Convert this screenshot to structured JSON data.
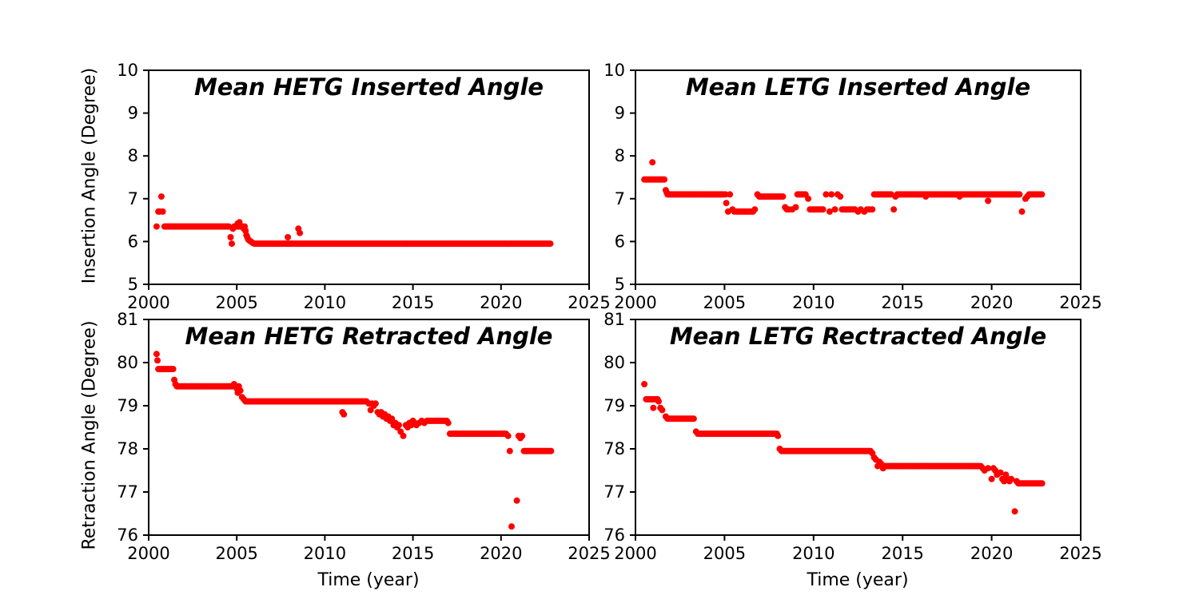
{
  "figure": {
    "background": "#ffffff",
    "marker_color": "#ff0000"
  },
  "chart_data": [
    {
      "type": "scatter",
      "title": "Mean HETG Inserted Angle",
      "xlabel": "",
      "ylabel": "Insertion Angle (Degree)",
      "xlim": [
        2000,
        2025
      ],
      "ylim": [
        5,
        10
      ],
      "xticks": [
        2000,
        2005,
        2010,
        2015,
        2020,
        2025
      ],
      "yticks": [
        5,
        6,
        7,
        8,
        9,
        10
      ],
      "grid": false,
      "legend": "none",
      "marker": {
        "color": "#ff0000",
        "size": 4
      },
      "runs": [
        {
          "from": 2000.9,
          "to": 2004.6,
          "step": 0.07,
          "y": 6.35
        },
        {
          "from": 2004.95,
          "to": 2005.35,
          "step": 0.08,
          "y": 6.35
        },
        {
          "from": 2006.0,
          "to": 2022.8,
          "step": 0.07,
          "y": 5.95
        }
      ],
      "points": [
        [
          2000.45,
          6.35
        ],
        [
          2000.55,
          6.7
        ],
        [
          2000.62,
          6.7
        ],
        [
          2000.72,
          7.05
        ],
        [
          2000.8,
          6.7
        ],
        [
          2004.65,
          6.1
        ],
        [
          2004.72,
          5.95
        ],
        [
          2004.78,
          6.3
        ],
        [
          2004.85,
          6.35
        ],
        [
          2005.05,
          6.42
        ],
        [
          2005.15,
          6.45
        ],
        [
          2005.4,
          6.3
        ],
        [
          2005.45,
          6.35
        ],
        [
          2005.5,
          6.25
        ],
        [
          2005.55,
          6.15
        ],
        [
          2005.6,
          6.1
        ],
        [
          2005.65,
          6.05
        ],
        [
          2005.72,
          6.02
        ],
        [
          2005.8,
          6.0
        ],
        [
          2005.9,
          5.97
        ],
        [
          2007.9,
          6.1
        ],
        [
          2008.5,
          6.3
        ],
        [
          2008.58,
          6.2
        ]
      ]
    },
    {
      "type": "scatter",
      "title": "Mean LETG Inserted Angle",
      "xlabel": "",
      "ylabel": "",
      "xlim": [
        2000,
        2025
      ],
      "ylim": [
        5,
        10
      ],
      "xticks": [
        2000,
        2005,
        2010,
        2015,
        2020,
        2025
      ],
      "yticks": [
        5,
        6,
        7,
        8,
        9,
        10
      ],
      "grid": false,
      "legend": "none",
      "marker": {
        "color": "#ff0000",
        "size": 4
      },
      "runs": [
        {
          "from": 2000.5,
          "to": 2001.65,
          "step": 0.07,
          "y": 7.45
        },
        {
          "from": 2001.8,
          "to": 2004.95,
          "step": 0.07,
          "y": 7.1
        },
        {
          "from": 2005.7,
          "to": 2006.6,
          "step": 0.09,
          "y": 6.7
        },
        {
          "from": 2007.0,
          "to": 2008.3,
          "step": 0.08,
          "y": 7.05
        },
        {
          "from": 2009.1,
          "to": 2009.6,
          "step": 0.09,
          "y": 7.1
        },
        {
          "from": 2009.9,
          "to": 2010.6,
          "step": 0.09,
          "y": 6.75
        },
        {
          "from": 2011.6,
          "to": 2012.4,
          "step": 0.09,
          "y": 6.75
        },
        {
          "from": 2013.4,
          "to": 2014.4,
          "step": 0.08,
          "y": 7.1
        },
        {
          "from": 2014.7,
          "to": 2021.6,
          "step": 0.07,
          "y": 7.1
        },
        {
          "from": 2022.1,
          "to": 2022.85,
          "step": 0.09,
          "y": 7.1
        }
      ],
      "points": [
        [
          2000.95,
          7.85
        ],
        [
          2001.7,
          7.2
        ],
        [
          2001.75,
          7.15
        ],
        [
          2005.05,
          7.1
        ],
        [
          2005.1,
          6.9
        ],
        [
          2005.2,
          6.7
        ],
        [
          2005.3,
          7.1
        ],
        [
          2005.45,
          6.75
        ],
        [
          2005.55,
          6.7
        ],
        [
          2006.7,
          6.75
        ],
        [
          2006.85,
          7.1
        ],
        [
          2006.95,
          7.05
        ],
        [
          2008.4,
          6.8
        ],
        [
          2008.5,
          6.75
        ],
        [
          2008.62,
          6.75
        ],
        [
          2008.8,
          6.75
        ],
        [
          2009.0,
          6.8
        ],
        [
          2009.7,
          7.0
        ],
        [
          2009.8,
          6.75
        ],
        [
          2010.7,
          7.1
        ],
        [
          2010.9,
          6.7
        ],
        [
          2011.0,
          7.1
        ],
        [
          2011.2,
          6.75
        ],
        [
          2011.35,
          7.1
        ],
        [
          2011.5,
          7.05
        ],
        [
          2012.5,
          6.7
        ],
        [
          2012.65,
          6.75
        ],
        [
          2012.85,
          6.7
        ],
        [
          2013.0,
          6.75
        ],
        [
          2013.15,
          6.75
        ],
        [
          2013.3,
          6.75
        ],
        [
          2014.5,
          6.75
        ],
        [
          2014.6,
          7.05
        ],
        [
          2016.3,
          7.05
        ],
        [
          2018.2,
          7.05
        ],
        [
          2019.8,
          6.95
        ],
        [
          2021.7,
          6.7
        ],
        [
          2021.9,
          7.0
        ],
        [
          2022.0,
          7.05
        ]
      ]
    },
    {
      "type": "scatter",
      "title": "Mean HETG Retracted Angle",
      "xlabel": "Time (year)",
      "ylabel": "Retraction Angle (Degree)",
      "xlim": [
        2000,
        2025
      ],
      "ylim": [
        76,
        81
      ],
      "xticks": [
        2000,
        2005,
        2010,
        2015,
        2020,
        2025
      ],
      "yticks": [
        76,
        77,
        78,
        79,
        80,
        81
      ],
      "grid": false,
      "legend": "none",
      "marker": {
        "color": "#ff0000",
        "size": 4
      },
      "runs": [
        {
          "from": 2000.55,
          "to": 2001.4,
          "step": 0.07,
          "y": 79.85
        },
        {
          "from": 2001.6,
          "to": 2004.75,
          "step": 0.07,
          "y": 79.45
        },
        {
          "from": 2005.5,
          "to": 2012.4,
          "step": 0.07,
          "y": 79.1
        },
        {
          "from": 2015.8,
          "to": 2016.95,
          "step": 0.08,
          "y": 78.65
        },
        {
          "from": 2017.2,
          "to": 2020.3,
          "step": 0.07,
          "y": 78.35
        },
        {
          "from": 2021.3,
          "to": 2022.85,
          "step": 0.07,
          "y": 77.95
        }
      ],
      "points": [
        [
          2000.45,
          80.2
        ],
        [
          2000.5,
          80.05
        ],
        [
          2001.45,
          79.6
        ],
        [
          2001.52,
          79.5
        ],
        [
          2004.85,
          79.5
        ],
        [
          2004.92,
          79.45
        ],
        [
          2005.0,
          79.4
        ],
        [
          2005.06,
          79.3
        ],
        [
          2005.12,
          79.45
        ],
        [
          2005.2,
          79.35
        ],
        [
          2005.3,
          79.2
        ],
        [
          2005.4,
          79.15
        ],
        [
          2011.0,
          78.85
        ],
        [
          2011.08,
          78.8
        ],
        [
          2012.5,
          79.05
        ],
        [
          2012.6,
          78.9
        ],
        [
          2012.68,
          79.05
        ],
        [
          2012.78,
          79.0
        ],
        [
          2012.88,
          79.05
        ],
        [
          2013.0,
          78.85
        ],
        [
          2013.1,
          78.8
        ],
        [
          2013.2,
          78.85
        ],
        [
          2013.3,
          78.75
        ],
        [
          2013.4,
          78.8
        ],
        [
          2013.5,
          78.7
        ],
        [
          2013.6,
          78.75
        ],
        [
          2013.7,
          78.65
        ],
        [
          2013.8,
          78.7
        ],
        [
          2013.9,
          78.55
        ],
        [
          2014.0,
          78.6
        ],
        [
          2014.1,
          78.5
        ],
        [
          2014.2,
          78.55
        ],
        [
          2014.3,
          78.4
        ],
        [
          2014.45,
          78.3
        ],
        [
          2014.6,
          78.55
        ],
        [
          2014.7,
          78.5
        ],
        [
          2014.8,
          78.6
        ],
        [
          2014.9,
          78.55
        ],
        [
          2015.0,
          78.65
        ],
        [
          2015.1,
          78.6
        ],
        [
          2015.2,
          78.55
        ],
        [
          2015.35,
          78.6
        ],
        [
          2015.5,
          78.65
        ],
        [
          2015.65,
          78.6
        ],
        [
          2017.0,
          78.6
        ],
        [
          2017.1,
          78.35
        ],
        [
          2020.4,
          78.3
        ],
        [
          2020.5,
          77.95
        ],
        [
          2020.6,
          76.2
        ],
        [
          2020.9,
          76.8
        ],
        [
          2021.0,
          78.3
        ],
        [
          2021.1,
          78.25
        ],
        [
          2021.2,
          78.3
        ]
      ]
    },
    {
      "type": "scatter",
      "title": "Mean LETG Rectracted Angle",
      "xlabel": "Time (year)",
      "ylabel": "",
      "xlim": [
        2000,
        2025
      ],
      "ylim": [
        76,
        81
      ],
      "xticks": [
        2000,
        2005,
        2010,
        2015,
        2020,
        2025
      ],
      "yticks": [
        76,
        77,
        78,
        79,
        80,
        81
      ],
      "grid": false,
      "legend": "none",
      "marker": {
        "color": "#ff0000",
        "size": 4
      },
      "runs": [
        {
          "from": 2000.6,
          "to": 2001.25,
          "step": 0.08,
          "y": 79.15
        },
        {
          "from": 2001.8,
          "to": 2003.3,
          "step": 0.07,
          "y": 78.7
        },
        {
          "from": 2003.6,
          "to": 2007.95,
          "step": 0.07,
          "y": 78.35
        },
        {
          "from": 2008.3,
          "to": 2013.2,
          "step": 0.07,
          "y": 77.95
        },
        {
          "from": 2014.0,
          "to": 2019.4,
          "step": 0.07,
          "y": 77.6
        },
        {
          "from": 2021.5,
          "to": 2022.85,
          "step": 0.07,
          "y": 77.2
        }
      ],
      "points": [
        [
          2000.5,
          79.5
        ],
        [
          2001.0,
          78.95
        ],
        [
          2001.3,
          79.1
        ],
        [
          2001.4,
          78.95
        ],
        [
          2001.5,
          78.9
        ],
        [
          2001.7,
          78.75
        ],
        [
          2003.4,
          78.4
        ],
        [
          2003.5,
          78.35
        ],
        [
          2008.0,
          78.3
        ],
        [
          2008.1,
          78.0
        ],
        [
          2008.2,
          77.95
        ],
        [
          2013.3,
          77.9
        ],
        [
          2013.4,
          77.8
        ],
        [
          2013.5,
          77.75
        ],
        [
          2013.6,
          77.6
        ],
        [
          2013.7,
          77.7
        ],
        [
          2013.8,
          77.65
        ],
        [
          2013.9,
          77.55
        ],
        [
          2019.5,
          77.55
        ],
        [
          2019.6,
          77.5
        ],
        [
          2019.8,
          77.55
        ],
        [
          2020.0,
          77.3
        ],
        [
          2020.1,
          77.55
        ],
        [
          2020.2,
          77.5
        ],
        [
          2020.3,
          77.4
        ],
        [
          2020.5,
          77.45
        ],
        [
          2020.6,
          77.3
        ],
        [
          2020.7,
          77.25
        ],
        [
          2020.8,
          77.4
        ],
        [
          2020.9,
          77.3
        ],
        [
          2021.0,
          77.25
        ],
        [
          2021.1,
          77.3
        ],
        [
          2021.3,
          76.55
        ],
        [
          2021.4,
          77.25
        ]
      ]
    }
  ]
}
